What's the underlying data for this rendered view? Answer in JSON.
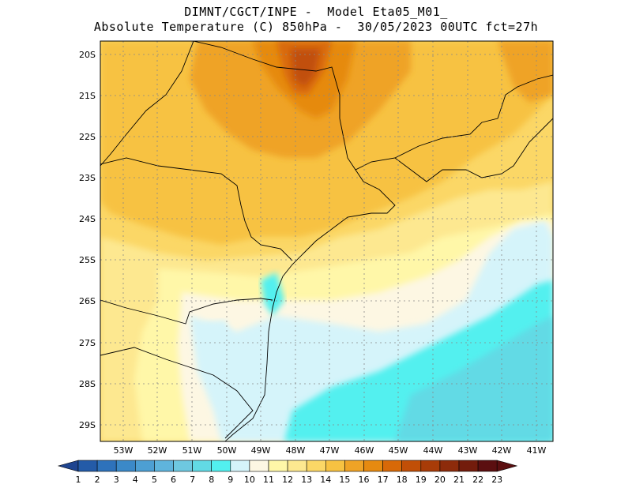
{
  "header": {
    "line1": "DIMNT/CGCT/INPE -  Model Eta05_M01_",
    "line2": "Absolute Temperature (C) 850hPa -  30/05/2023 00UTC fct=27h"
  },
  "axes": {
    "lat_labels": [
      "20S",
      "21S",
      "22S",
      "23S",
      "24S",
      "25S",
      "26S",
      "27S",
      "28S",
      "29S"
    ],
    "lon_labels": [
      "53W",
      "52W",
      "51W",
      "50W",
      "49W",
      "48W",
      "47W",
      "46W",
      "45W",
      "44W",
      "43W",
      "42W",
      "41W"
    ]
  },
  "colorbar": {
    "labels": [
      "1",
      "2",
      "3",
      "4",
      "5",
      "6",
      "7",
      "8",
      "9",
      "10",
      "11",
      "12",
      "13",
      "14",
      "15",
      "16",
      "17",
      "18",
      "19",
      "20",
      "21",
      "22",
      "23"
    ],
    "colors": [
      "#1f4590",
      "#245ba8",
      "#2e72bb",
      "#3b89c8",
      "#4d9fd3",
      "#5fb4dc",
      "#6ec8e0",
      "#62dae5",
      "#52f0ef",
      "#d5f4fa",
      "#fdf7e3",
      "#fff7a8",
      "#fde890",
      "#fbd766",
      "#f7c242",
      "#efa326",
      "#e68a10",
      "#d86908",
      "#c14f07",
      "#a83c08",
      "#8d2b0b",
      "#731c0c",
      "#5b0f10"
    ]
  },
  "field": {
    "description_levels": "temperature shading by level",
    "grid_lines": true
  }
}
